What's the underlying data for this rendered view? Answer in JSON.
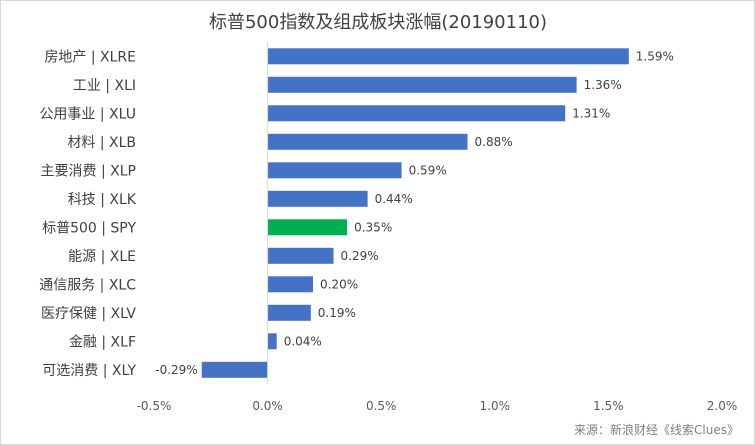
{
  "chart_data": {
    "type": "bar",
    "orientation": "horizontal",
    "title": "标普500指数及组成板块涨幅(20190110)",
    "categories": [
      "房地产 | XLRE",
      "工业 | XLI",
      "公用事业 | XLU",
      "材料 | XLB",
      "主要消费 | XLP",
      "科技 | XLK",
      "标普500 | SPY",
      "能源 | XLE",
      "通信服务 | XLC",
      "医疗保健 | XLV",
      "金融 | XLF",
      "可选消费 | XLY"
    ],
    "values": [
      1.59,
      1.36,
      1.31,
      0.88,
      0.59,
      0.44,
      0.35,
      0.29,
      0.2,
      0.19,
      0.04,
      -0.29
    ],
    "value_labels": [
      "1.59%",
      "1.36%",
      "1.31%",
      "0.88%",
      "0.59%",
      "0.44%",
      "0.35%",
      "0.29%",
      "0.20%",
      "0.19%",
      "0.04%",
      "-0.29%"
    ],
    "xlim": [
      -0.5,
      2.0
    ],
    "xticks": [
      -0.5,
      0,
      0.5,
      1.0,
      1.5,
      2.0
    ],
    "xtick_labels": [
      "-0.5%",
      "0.0%",
      "0.5%",
      "1.0%",
      "1.5%",
      "2.0%"
    ],
    "xlabel": "",
    "ylabel": "",
    "grid": false,
    "legend": "none",
    "bar_color": "#4472c4",
    "highlight_color": "#00b050",
    "highlight_index": 6,
    "source": "来源：新浪财经《线索Clues》"
  }
}
